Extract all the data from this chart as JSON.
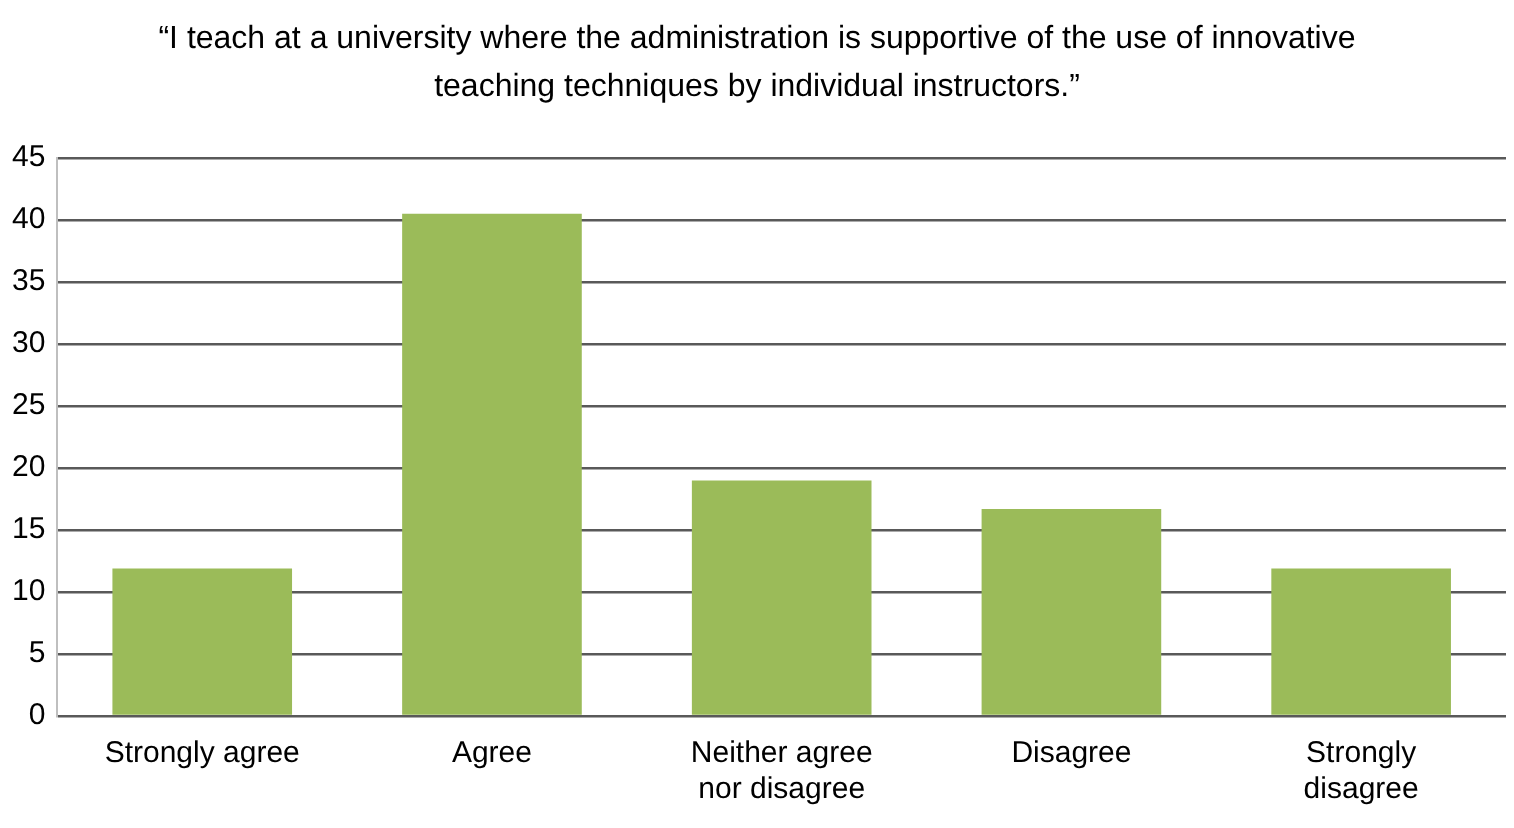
{
  "chart_data": {
    "type": "bar",
    "title": "“I teach at a university where the administration is supportive of the use of innovative teaching techniques by individual instructors.”",
    "categories": [
      "Strongly agree",
      "Agree",
      "Neither agree nor disagree",
      "Disagree",
      "Strongly disagree"
    ],
    "values": [
      11.9,
      40.5,
      19,
      16.7,
      11.9
    ],
    "color": "#9bbb59",
    "ylim": [
      0,
      45
    ],
    "yticks": [
      0,
      5,
      10,
      15,
      20,
      25,
      30,
      35,
      40,
      45
    ],
    "grid": "y",
    "legend": false
  }
}
